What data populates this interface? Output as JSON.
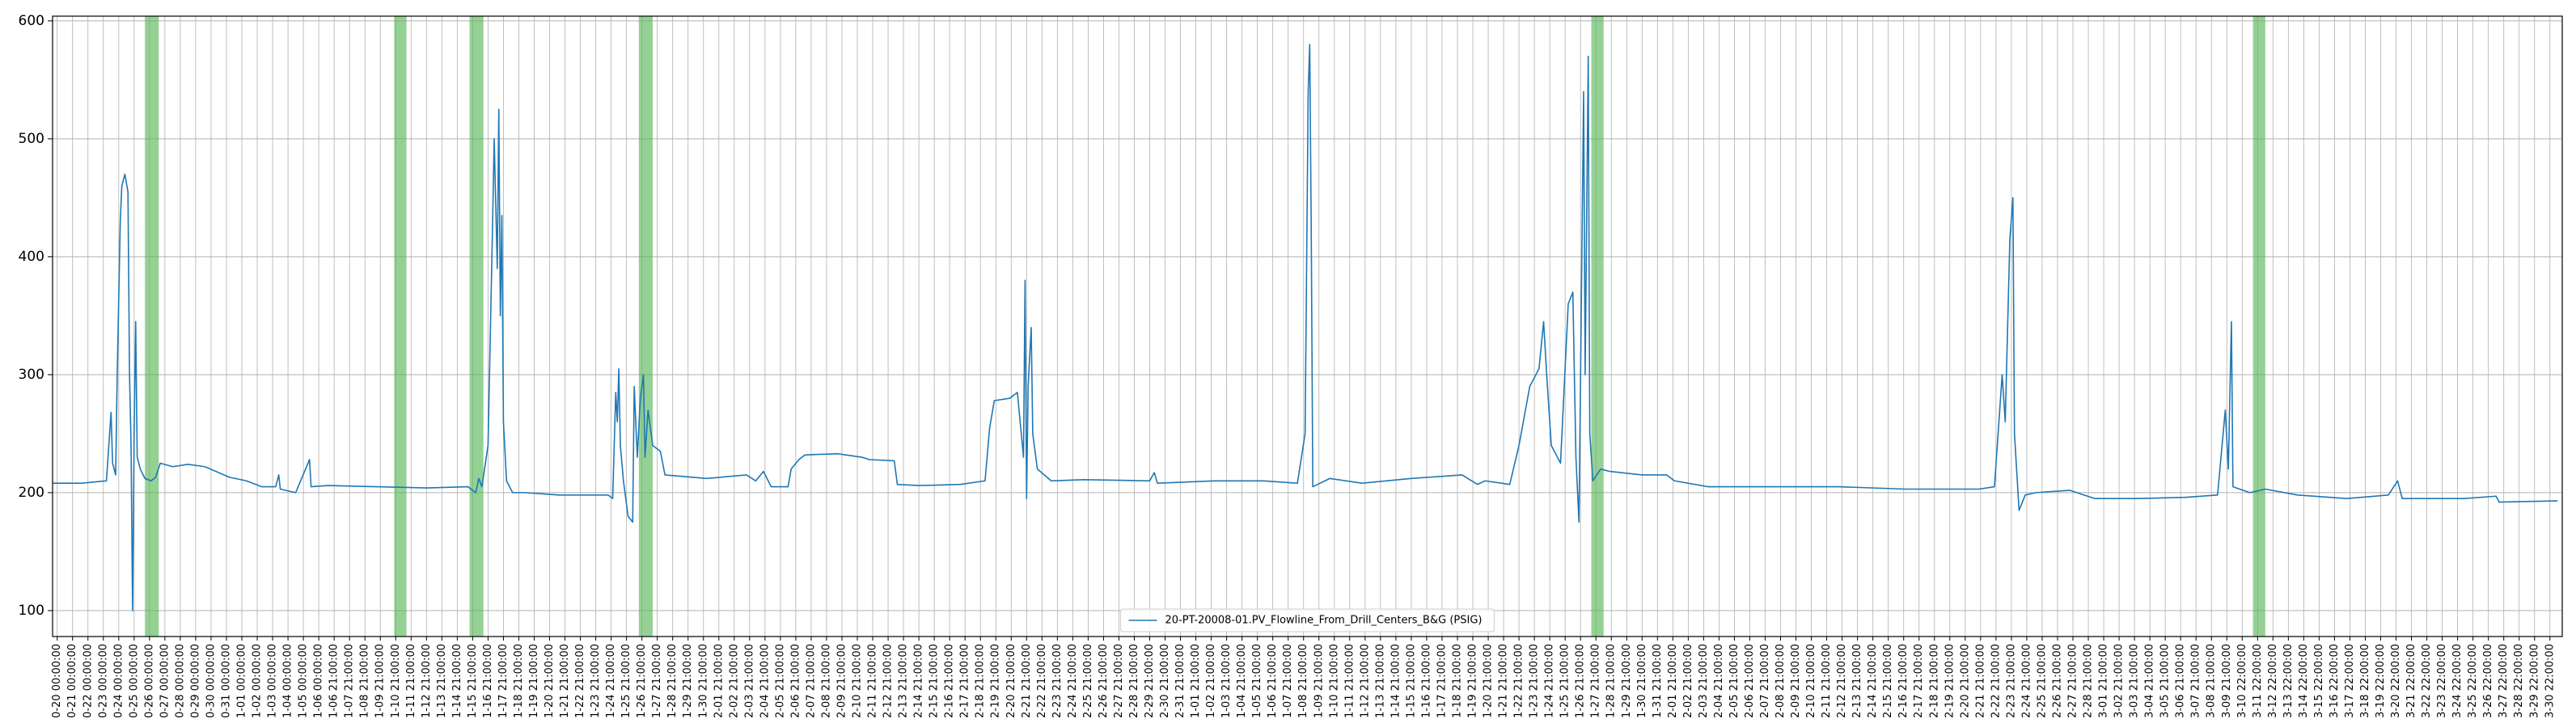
{
  "chart_data": {
    "type": "line",
    "series": [
      {
        "name": "20-PT-20008-01.PV_Flowline_From_Drill_Centers_B&G (PSIG)",
        "color": "#1f77b4",
        "x": [
          -0.3,
          1.6,
          3.2,
          3.5,
          3.6,
          3.8,
          3.9,
          4.1,
          4.2,
          4.4,
          4.6,
          4.7,
          4.8,
          4.9,
          5.0,
          5.1,
          5.2,
          5.4,
          5.7,
          6.1,
          6.4,
          6.7,
          7.5,
          8.5,
          9.6,
          11.2,
          12.3,
          13.3,
          14.2,
          14.4,
          14.5,
          15.5,
          16.4,
          16.5,
          17.6,
          20.8,
          24.0,
          26.7,
          27.2,
          27.4,
          27.6,
          28.0,
          28.3,
          28.4,
          28.6,
          28.7,
          28.8,
          28.9,
          29.0,
          29.2,
          29.6,
          30.4,
          32.6,
          35.8,
          36.1,
          36.3,
          36.4,
          36.5,
          36.6,
          36.8,
          37.1,
          37.4,
          37.5,
          37.7,
          37.9,
          38.1,
          38.2,
          38.4,
          38.7,
          39.2,
          39.5,
          42.2,
          44.8,
          45.4,
          45.9,
          46.4,
          47.5,
          47.7,
          48.2,
          48.6,
          50.7,
          52.3,
          52.8,
          54.4,
          54.6,
          56.0,
          58.7,
          60.3,
          60.6,
          60.9,
          61.9,
          62.4,
          62.8,
          62.9,
          63.0,
          63.1,
          63.3,
          63.4,
          63.7,
          64.6,
          66.7,
          71.0,
          71.3,
          71.5,
          75.2,
          78.4,
          80.6,
          81.1,
          81.3,
          81.4,
          81.5,
          81.6,
          82.7,
          84.8,
          88.0,
          91.3,
          92.3,
          92.8,
          94.4,
          95.0,
          95.7,
          96.3,
          96.6,
          96.8,
          97.1,
          97.7,
          98.2,
          98.5,
          98.7,
          98.9,
          99.2,
          99.3,
          99.5,
          99.6,
          99.8,
          100.3,
          100.9,
          103.0,
          104.6,
          105.1,
          107.3,
          111.5,
          115.8,
          120.1,
          124.9,
          125.9,
          126.4,
          126.6,
          126.9,
          127.1,
          127.2,
          127.5,
          127.9,
          128.6,
          130.8,
          132.4,
          135.1,
          138.3,
          140.4,
          140.9,
          141.1,
          141.3,
          141.4,
          142.5,
          143.5,
          145.6,
          148.8,
          151.5,
          152.1,
          152.4,
          156.4,
          158.5,
          158.7,
          162.5
        ],
        "values": [
          208,
          208,
          210,
          268,
          225,
          215,
          300,
          430,
          460,
          470,
          455,
          300,
          240,
          100,
          250,
          345,
          230,
          220,
          212,
          210,
          213,
          225,
          222,
          224,
          222,
          213,
          210,
          205,
          205,
          215,
          203,
          200,
          228,
          205,
          206,
          205,
          204,
          205,
          200,
          212,
          205,
          240,
          430,
          500,
          390,
          525,
          350,
          435,
          260,
          210,
          200,
          200,
          198,
          198,
          195,
          285,
          260,
          305,
          240,
          210,
          180,
          175,
          290,
          230,
          280,
          300,
          230,
          270,
          240,
          235,
          215,
          212,
          215,
          210,
          218,
          205,
          205,
          220,
          228,
          232,
          233,
          230,
          228,
          227,
          207,
          206,
          207,
          210,
          255,
          278,
          280,
          285,
          230,
          380,
          195,
          290,
          340,
          250,
          220,
          210,
          211,
          210,
          217,
          208,
          210,
          210,
          208,
          250,
          540,
          580,
          420,
          205,
          212,
          208,
          212,
          215,
          207,
          210,
          207,
          240,
          290,
          305,
          345,
          300,
          240,
          225,
          360,
          370,
          230,
          175,
          540,
          300,
          570,
          250,
          210,
          220,
          218,
          215,
          215,
          210,
          205,
          205,
          205,
          203,
          203,
          205,
          300,
          260,
          415,
          450,
          250,
          185,
          198,
          200,
          202,
          195,
          195,
          196,
          198,
          270,
          220,
          345,
          205,
          200,
          203,
          198,
          195,
          198,
          210,
          195,
          195,
          197,
          192,
          193
        ]
      }
    ],
    "spans": [
      {
        "start": 5.7,
        "end": 6.6
      },
      {
        "start": 21.9,
        "end": 22.7
      },
      {
        "start": 26.8,
        "end": 27.7
      },
      {
        "start": 37.8,
        "end": 38.7
      },
      {
        "start": 99.7,
        "end": 100.5
      },
      {
        "start": 142.7,
        "end": 143.5
      }
    ],
    "span_color": "#5cb85c",
    "xlim": [
      -0.3,
      162.8
    ],
    "ylim": [
      78,
      604
    ],
    "yticks": [
      100,
      200,
      300,
      400,
      500,
      600
    ],
    "grid": true,
    "legend": "lower center",
    "xticks": [
      {
        "value": 0,
        "label": "0-20 00:00:00"
      },
      {
        "value": 1,
        "label": "0-21 00:00:00"
      },
      {
        "value": 2,
        "label": "0-22 00:00:00"
      },
      {
        "value": 3,
        "label": "0-23 00:00:00"
      },
      {
        "value": 4,
        "label": "0-24 00:00:00"
      },
      {
        "value": 5,
        "label": "0-25 00:00:00"
      },
      {
        "value": 6,
        "label": "0-26 00:00:00"
      },
      {
        "value": 7,
        "label": "0-27 00:00:00"
      },
      {
        "value": 8,
        "label": "0-28 00:00:00"
      },
      {
        "value": 9,
        "label": "0-29 00:00:00"
      },
      {
        "value": 10,
        "label": "0-30 00:00:00"
      },
      {
        "value": 11,
        "label": "0-31 00:00:00"
      },
      {
        "value": 12,
        "label": "1-01 00:00:00"
      },
      {
        "value": 13,
        "label": "1-02 00:00:00"
      },
      {
        "value": 14,
        "label": "1-03 00:00:00"
      },
      {
        "value": 15,
        "label": "1-04 00:00:00"
      },
      {
        "value": 16,
        "label": "1-05 00:00:00"
      },
      {
        "value": 17,
        "label": "1-06 00:00:00"
      },
      {
        "value": 18,
        "label": "1-06 21:00:00"
      },
      {
        "value": 19,
        "label": "1-07 21:00:00"
      },
      {
        "value": 20,
        "label": "1-08 21:00:00"
      },
      {
        "value": 21,
        "label": "1-09 21:00:00"
      },
      {
        "value": 22,
        "label": "1-10 21:00:00"
      },
      {
        "value": 23,
        "label": "1-11 21:00:00"
      },
      {
        "value": 24,
        "label": "1-12 21:00:00"
      },
      {
        "value": 25,
        "label": "1-13 21:00:00"
      },
      {
        "value": 26,
        "label": "1-14 21:00:00"
      },
      {
        "value": 27,
        "label": "1-15 21:00:00"
      },
      {
        "value": 28,
        "label": "1-16 21:00:00"
      },
      {
        "value": 29,
        "label": "1-17 21:00:00"
      },
      {
        "value": 30,
        "label": "1-18 21:00:00"
      },
      {
        "value": 31,
        "label": "1-19 21:00:00"
      },
      {
        "value": 32,
        "label": "1-20 21:00:00"
      },
      {
        "value": 33,
        "label": "1-21 21:00:00"
      },
      {
        "value": 34,
        "label": "1-22 21:00:00"
      },
      {
        "value": 35,
        "label": "1-23 21:00:00"
      },
      {
        "value": 36,
        "label": "1-24 21:00:00"
      },
      {
        "value": 37,
        "label": "1-25 21:00:00"
      },
      {
        "value": 38,
        "label": "1-26 21:00:00"
      },
      {
        "value": 39,
        "label": "1-27 21:00:00"
      },
      {
        "value": 40,
        "label": "1-28 21:00:00"
      },
      {
        "value": 41,
        "label": "1-29 21:00:00"
      },
      {
        "value": 42,
        "label": "1-30 21:00:00"
      },
      {
        "value": 43,
        "label": "2-01 21:00:00"
      },
      {
        "value": 44,
        "label": "2-02 21:00:00"
      },
      {
        "value": 45,
        "label": "2-03 21:00:00"
      },
      {
        "value": 46,
        "label": "2-04 21:00:00"
      },
      {
        "value": 47,
        "label": "2-05 21:00:00"
      },
      {
        "value": 48,
        "label": "2-06 21:00:00"
      },
      {
        "value": 49,
        "label": "2-07 21:00:00"
      },
      {
        "value": 50,
        "label": "2-08 21:00:00"
      },
      {
        "value": 51,
        "label": "2-09 21:00:00"
      },
      {
        "value": 52,
        "label": "2-10 21:00:00"
      },
      {
        "value": 53,
        "label": "2-11 21:00:00"
      },
      {
        "value": 54,
        "label": "2-12 21:00:00"
      },
      {
        "value": 55,
        "label": "2-13 21:00:00"
      },
      {
        "value": 56,
        "label": "2-14 21:00:00"
      },
      {
        "value": 57,
        "label": "2-15 21:00:00"
      },
      {
        "value": 58,
        "label": "2-16 21:00:00"
      },
      {
        "value": 59,
        "label": "2-17 21:00:00"
      },
      {
        "value": 60,
        "label": "2-18 21:00:00"
      },
      {
        "value": 61,
        "label": "2-19 21:00:00"
      },
      {
        "value": 62,
        "label": "2-20 21:00:00"
      },
      {
        "value": 63,
        "label": "2-21 21:00:00"
      },
      {
        "value": 64,
        "label": "2-22 21:00:00"
      },
      {
        "value": 65,
        "label": "2-23 21:00:00"
      },
      {
        "value": 66,
        "label": "2-24 21:00:00"
      },
      {
        "value": 67,
        "label": "2-25 21:00:00"
      },
      {
        "value": 68,
        "label": "2-26 21:00:00"
      },
      {
        "value": 69,
        "label": "2-27 21:00:00"
      },
      {
        "value": 70,
        "label": "2-28 21:00:00"
      },
      {
        "value": 71,
        "label": "2-29 21:00:00"
      },
      {
        "value": 72,
        "label": "2-30 21:00:00"
      },
      {
        "value": 73,
        "label": "2-31 21:00:00"
      },
      {
        "value": 74,
        "label": "1-01 21:00:00"
      },
      {
        "value": 75,
        "label": "1-02 21:00:00"
      },
      {
        "value": 76,
        "label": "1-03 21:00:00"
      },
      {
        "value": 77,
        "label": "1-04 21:00:00"
      },
      {
        "value": 78,
        "label": "1-05 21:00:00"
      },
      {
        "value": 79,
        "label": "1-06 21:00:00"
      },
      {
        "value": 80,
        "label": "1-07 21:00:00"
      },
      {
        "value": 81,
        "label": "1-08 21:00:00"
      },
      {
        "value": 82,
        "label": "1-09 21:00:00"
      },
      {
        "value": 83,
        "label": "1-10 21:00:00"
      },
      {
        "value": 84,
        "label": "1-11 21:00:00"
      },
      {
        "value": 85,
        "label": "1-12 21:00:00"
      },
      {
        "value": 86,
        "label": "1-13 21:00:00"
      },
      {
        "value": 87,
        "label": "1-14 21:00:00"
      },
      {
        "value": 88,
        "label": "1-15 21:00:00"
      },
      {
        "value": 89,
        "label": "1-16 21:00:00"
      },
      {
        "value": 90,
        "label": "1-17 21:00:00"
      },
      {
        "value": 91,
        "label": "1-18 21:00:00"
      },
      {
        "value": 92,
        "label": "1-19 21:00:00"
      },
      {
        "value": 93,
        "label": "1-20 21:00:00"
      },
      {
        "value": 94,
        "label": "1-21 21:00:00"
      },
      {
        "value": 95,
        "label": "1-22 21:00:00"
      },
      {
        "value": 96,
        "label": "1-23 21:00:00"
      },
      {
        "value": 97,
        "label": "1-24 21:00:00"
      },
      {
        "value": 98,
        "label": "1-25 21:00:00"
      },
      {
        "value": 99,
        "label": "1-26 21:00:00"
      },
      {
        "value": 100,
        "label": "1-27 21:00:00"
      },
      {
        "value": 101,
        "label": "1-28 21:00:00"
      },
      {
        "value": 102,
        "label": "1-29 21:00:00"
      },
      {
        "value": 103,
        "label": "1-30 21:00:00"
      },
      {
        "value": 104,
        "label": "1-31 21:00:00"
      },
      {
        "value": 105,
        "label": "2-01 21:00:00"
      },
      {
        "value": 106,
        "label": "2-02 21:00:00"
      },
      {
        "value": 107,
        "label": "2-03 21:00:00"
      },
      {
        "value": 108,
        "label": "2-04 21:00:00"
      },
      {
        "value": 109,
        "label": "2-05 21:00:00"
      },
      {
        "value": 110,
        "label": "2-06 21:00:00"
      },
      {
        "value": 111,
        "label": "2-07 21:00:00"
      },
      {
        "value": 112,
        "label": "2-08 21:00:00"
      },
      {
        "value": 113,
        "label": "2-09 21:00:00"
      },
      {
        "value": 114,
        "label": "2-10 21:00:00"
      },
      {
        "value": 115,
        "label": "2-11 21:00:00"
      },
      {
        "value": 116,
        "label": "2-12 21:00:00"
      },
      {
        "value": 117,
        "label": "2-13 21:00:00"
      },
      {
        "value": 118,
        "label": "2-14 21:00:00"
      },
      {
        "value": 119,
        "label": "2-15 21:00:00"
      },
      {
        "value": 120,
        "label": "2-16 21:00:00"
      },
      {
        "value": 121,
        "label": "2-17 21:00:00"
      },
      {
        "value": 122,
        "label": "2-18 21:00:00"
      },
      {
        "value": 123,
        "label": "2-19 21:00:00"
      },
      {
        "value": 124,
        "label": "2-20 21:00:00"
      },
      {
        "value": 125,
        "label": "2-21 21:00:00"
      },
      {
        "value": 126,
        "label": "2-22 21:00:00"
      },
      {
        "value": 127,
        "label": "2-23 21:00:00"
      },
      {
        "value": 128,
        "label": "2-24 21:00:00"
      },
      {
        "value": 129,
        "label": "2-25 21:00:00"
      },
      {
        "value": 130,
        "label": "2-26 21:00:00"
      },
      {
        "value": 131,
        "label": "2-27 21:00:00"
      },
      {
        "value": 132,
        "label": "2-28 21:00:00"
      },
      {
        "value": 133,
        "label": "3-01 21:00:00"
      },
      {
        "value": 134,
        "label": "3-02 21:00:00"
      },
      {
        "value": 135,
        "label": "3-03 21:00:00"
      },
      {
        "value": 136,
        "label": "3-04 21:00:00"
      },
      {
        "value": 137,
        "label": "3-05 21:00:00"
      },
      {
        "value": 138,
        "label": "3-06 21:00:00"
      },
      {
        "value": 139,
        "label": "3-07 21:00:00"
      },
      {
        "value": 140,
        "label": "3-08 21:00:00"
      },
      {
        "value": 141,
        "label": "3-09 21:00:00"
      },
      {
        "value": 142,
        "label": "3-10 22:00:00"
      },
      {
        "value": 143,
        "label": "3-11 22:00:00"
      },
      {
        "value": 144,
        "label": "3-12 22:00:00"
      },
      {
        "value": 145,
        "label": "3-13 22:00:00"
      },
      {
        "value": 146,
        "label": "3-14 22:00:00"
      },
      {
        "value": 147,
        "label": "3-15 22:00:00"
      },
      {
        "value": 148,
        "label": "3-16 22:00:00"
      },
      {
        "value": 149,
        "label": "3-17 22:00:00"
      },
      {
        "value": 150,
        "label": "3-18 22:00:00"
      },
      {
        "value": 151,
        "label": "3-19 22:00:00"
      },
      {
        "value": 152,
        "label": "3-20 22:00:00"
      },
      {
        "value": 153,
        "label": "3-21 22:00:00"
      },
      {
        "value": 154,
        "label": "3-22 22:00:00"
      },
      {
        "value": 155,
        "label": "3-23 22:00:00"
      },
      {
        "value": 156,
        "label": "3-24 22:00:00"
      },
      {
        "value": 157,
        "label": "3-25 22:00:00"
      },
      {
        "value": 158,
        "label": "3-26 22:00:00"
      },
      {
        "value": 159,
        "label": "3-27 22:00:00"
      },
      {
        "value": 160,
        "label": "3-28 22:00:00"
      },
      {
        "value": 161,
        "label": "3-29 22:00:00"
      },
      {
        "value": 162,
        "label": "3-30 22:00:00"
      }
    ]
  }
}
